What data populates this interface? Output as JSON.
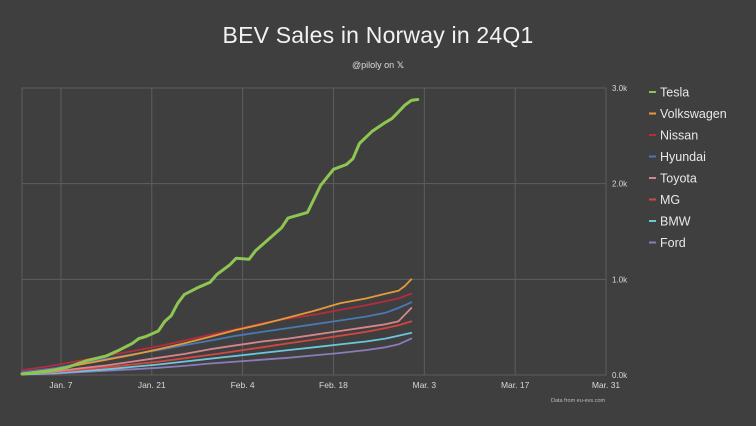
{
  "chart_data": {
    "type": "line",
    "title": "BEV Sales in Norway in 24Q1",
    "subtitle": "@piloly on",
    "subtitle_icon": "x-logo-icon",
    "source": "Data from eu-evs.com",
    "x_axis": {
      "unit": "day of year 2024",
      "range": [
        1,
        91
      ],
      "ticks": [
        {
          "x": 7,
          "label": "Jan. 7"
        },
        {
          "x": 21,
          "label": "Jan. 21"
        },
        {
          "x": 35,
          "label": "Feb. 4"
        },
        {
          "x": 49,
          "label": "Feb. 18"
        },
        {
          "x": 63,
          "label": "Mar. 3"
        },
        {
          "x": 77,
          "label": "Mar. 17"
        },
        {
          "x": 91,
          "label": "Mar. 31"
        }
      ]
    },
    "y_axis": {
      "position": "right",
      "range": [
        0,
        3000
      ],
      "ticks": [
        {
          "y": 0,
          "label": "0.0k"
        },
        {
          "y": 1000,
          "label": "1.0k"
        },
        {
          "y": 2000,
          "label": "2.0k"
        },
        {
          "y": 3000,
          "label": "3.0k"
        }
      ]
    },
    "grid": true,
    "legend_position": "right",
    "series": [
      {
        "name": "Tesla",
        "color": "#8fc552",
        "points": [
          [
            1,
            10
          ],
          [
            5,
            40
          ],
          [
            8,
            80
          ],
          [
            11,
            150
          ],
          [
            14,
            200
          ],
          [
            16,
            260
          ],
          [
            18,
            330
          ],
          [
            19,
            380
          ],
          [
            20,
            400
          ],
          [
            21,
            430
          ],
          [
            22,
            460
          ],
          [
            23,
            560
          ],
          [
            24,
            620
          ],
          [
            25,
            750
          ],
          [
            26,
            840
          ],
          [
            28,
            910
          ],
          [
            30,
            970
          ],
          [
            31,
            1050
          ],
          [
            33,
            1150
          ],
          [
            34,
            1220
          ],
          [
            36,
            1210
          ],
          [
            37,
            1300
          ],
          [
            39,
            1420
          ],
          [
            41,
            1540
          ],
          [
            42,
            1640
          ],
          [
            44,
            1680
          ],
          [
            45,
            1700
          ],
          [
            46,
            1840
          ],
          [
            47,
            1980
          ],
          [
            49,
            2150
          ],
          [
            51,
            2200
          ],
          [
            52,
            2260
          ],
          [
            53,
            2420
          ],
          [
            55,
            2550
          ],
          [
            57,
            2640
          ],
          [
            58,
            2680
          ],
          [
            59,
            2750
          ],
          [
            60,
            2820
          ],
          [
            61,
            2870
          ],
          [
            62,
            2880
          ]
        ]
      },
      {
        "name": "Volkswagen",
        "color": "#e59a3a",
        "points": [
          [
            1,
            15
          ],
          [
            6,
            60
          ],
          [
            10,
            110
          ],
          [
            14,
            160
          ],
          [
            18,
            210
          ],
          [
            22,
            270
          ],
          [
            26,
            330
          ],
          [
            30,
            400
          ],
          [
            34,
            470
          ],
          [
            38,
            530
          ],
          [
            42,
            600
          ],
          [
            46,
            670
          ],
          [
            50,
            750
          ],
          [
            54,
            800
          ],
          [
            57,
            850
          ],
          [
            59,
            880
          ],
          [
            60,
            930
          ],
          [
            61,
            1000
          ]
        ]
      },
      {
        "name": "Nissan",
        "color": "#b32d3d",
        "points": [
          [
            1,
            50
          ],
          [
            5,
            90
          ],
          [
            10,
            150
          ],
          [
            14,
            200
          ],
          [
            18,
            250
          ],
          [
            22,
            300
          ],
          [
            26,
            360
          ],
          [
            30,
            420
          ],
          [
            34,
            480
          ],
          [
            38,
            540
          ],
          [
            42,
            590
          ],
          [
            46,
            630
          ],
          [
            50,
            680
          ],
          [
            54,
            730
          ],
          [
            57,
            770
          ],
          [
            59,
            800
          ],
          [
            61,
            850
          ]
        ]
      },
      {
        "name": "Hyundai",
        "color": "#4a78b4",
        "points": [
          [
            1,
            30
          ],
          [
            6,
            70
          ],
          [
            10,
            120
          ],
          [
            14,
            170
          ],
          [
            18,
            215
          ],
          [
            22,
            260
          ],
          [
            26,
            310
          ],
          [
            30,
            360
          ],
          [
            34,
            410
          ],
          [
            38,
            450
          ],
          [
            42,
            490
          ],
          [
            46,
            530
          ],
          [
            50,
            570
          ],
          [
            54,
            610
          ],
          [
            57,
            650
          ],
          [
            59,
            700
          ],
          [
            61,
            760
          ]
        ]
      },
      {
        "name": "Toyota",
        "color": "#d6858f",
        "points": [
          [
            1,
            10
          ],
          [
            6,
            35
          ],
          [
            10,
            70
          ],
          [
            14,
            100
          ],
          [
            18,
            140
          ],
          [
            22,
            180
          ],
          [
            26,
            220
          ],
          [
            30,
            270
          ],
          [
            34,
            310
          ],
          [
            38,
            350
          ],
          [
            42,
            380
          ],
          [
            46,
            420
          ],
          [
            50,
            460
          ],
          [
            54,
            500
          ],
          [
            57,
            530
          ],
          [
            59,
            560
          ],
          [
            61,
            700
          ]
        ]
      },
      {
        "name": "MG",
        "color": "#d2483f",
        "points": [
          [
            1,
            10
          ],
          [
            6,
            30
          ],
          [
            10,
            55
          ],
          [
            14,
            80
          ],
          [
            18,
            110
          ],
          [
            22,
            140
          ],
          [
            26,
            175
          ],
          [
            30,
            210
          ],
          [
            34,
            250
          ],
          [
            38,
            290
          ],
          [
            42,
            330
          ],
          [
            46,
            370
          ],
          [
            50,
            410
          ],
          [
            54,
            450
          ],
          [
            57,
            490
          ],
          [
            59,
            520
          ],
          [
            61,
            560
          ]
        ]
      },
      {
        "name": "BMW",
        "color": "#6ec6dc",
        "points": [
          [
            1,
            5
          ],
          [
            6,
            20
          ],
          [
            10,
            40
          ],
          [
            14,
            60
          ],
          [
            18,
            85
          ],
          [
            22,
            110
          ],
          [
            26,
            140
          ],
          [
            30,
            170
          ],
          [
            34,
            200
          ],
          [
            38,
            230
          ],
          [
            42,
            260
          ],
          [
            46,
            290
          ],
          [
            50,
            320
          ],
          [
            54,
            350
          ],
          [
            57,
            380
          ],
          [
            59,
            410
          ],
          [
            61,
            440
          ]
        ]
      },
      {
        "name": "Ford",
        "color": "#8c7bb8",
        "points": [
          [
            1,
            5
          ],
          [
            6,
            15
          ],
          [
            10,
            30
          ],
          [
            14,
            45
          ],
          [
            18,
            60
          ],
          [
            22,
            75
          ],
          [
            26,
            95
          ],
          [
            30,
            120
          ],
          [
            34,
            140
          ],
          [
            38,
            160
          ],
          [
            42,
            180
          ],
          [
            46,
            205
          ],
          [
            50,
            230
          ],
          [
            54,
            260
          ],
          [
            57,
            290
          ],
          [
            59,
            320
          ],
          [
            61,
            380
          ]
        ]
      }
    ]
  }
}
